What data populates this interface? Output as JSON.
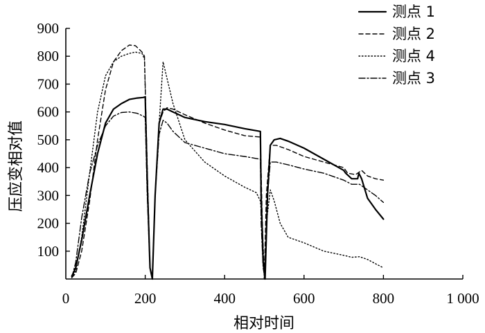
{
  "chart_data": {
    "type": "line",
    "xlabel": "相对时间",
    "ylabel": "压应变相对值",
    "xlim": [
      0,
      1000
    ],
    "ylim": [
      0,
      900
    ],
    "xticks": [
      0,
      200,
      400,
      600,
      800,
      1000
    ],
    "xtick_labels": [
      "0",
      "200",
      "400",
      "600",
      "800",
      "1 000"
    ],
    "yticks": [
      100,
      200,
      300,
      400,
      500,
      600,
      700,
      800,
      900
    ],
    "ytick_labels": [
      "100",
      "200",
      "300",
      "400",
      "500",
      "600",
      "700",
      "800",
      "900"
    ],
    "grid": false,
    "legend_position": "top-right",
    "series": [
      {
        "name": "测点 1",
        "style": "solid",
        "x": [
          15,
          25,
          40,
          60,
          80,
          100,
          120,
          140,
          160,
          180,
          195,
          200,
          205,
          212,
          218,
          225,
          235,
          245,
          255,
          270,
          300,
          350,
          400,
          450,
          490,
          492,
          497,
          502,
          508,
          515,
          525,
          540,
          560,
          600,
          650,
          700,
          705,
          720,
          735,
          738,
          745,
          760,
          780,
          800
        ],
        "y": [
          10,
          40,
          140,
          300,
          450,
          560,
          610,
          630,
          645,
          650,
          652,
          654,
          350,
          40,
          0,
          300,
          560,
          610,
          610,
          600,
          580,
          565,
          555,
          540,
          530,
          300,
          60,
          0,
          300,
          480,
          500,
          505,
          495,
          470,
          430,
          390,
          380,
          360,
          360,
          380,
          360,
          290,
          250,
          215
        ]
      },
      {
        "name": "测点 2",
        "style": "dashed",
        "x": [
          15,
          25,
          40,
          60,
          80,
          100,
          120,
          140,
          160,
          175,
          185,
          192,
          198,
          205,
          212,
          218,
          225,
          235,
          245,
          255,
          270,
          300,
          350,
          400,
          450,
          490,
          495,
          500,
          505,
          515,
          530,
          560,
          600,
          650,
          700,
          710,
          730,
          745,
          760,
          780,
          800
        ],
        "y": [
          5,
          20,
          100,
          280,
          500,
          680,
          780,
          820,
          840,
          838,
          825,
          815,
          800,
          400,
          40,
          0,
          300,
          560,
          600,
          615,
          610,
          590,
          560,
          535,
          515,
          510,
          200,
          0,
          300,
          480,
          480,
          465,
          440,
          420,
          400,
          380,
          375,
          390,
          370,
          360,
          355
        ]
      },
      {
        "name": "测点 4",
        "style": "dotted",
        "x": [
          15,
          25,
          40,
          60,
          80,
          100,
          120,
          140,
          160,
          175,
          185,
          192,
          198,
          205,
          212,
          218,
          225,
          235,
          245,
          255,
          270,
          300,
          350,
          400,
          450,
          480,
          490,
          495,
          500,
          505,
          515,
          525,
          540,
          560,
          600,
          650,
          700,
          720,
          740,
          760,
          780,
          800
        ],
        "y": [
          5,
          30,
          150,
          380,
          600,
          730,
          780,
          800,
          810,
          815,
          812,
          810,
          790,
          400,
          40,
          0,
          300,
          560,
          780,
          720,
          630,
          500,
          420,
          370,
          330,
          310,
          280,
          200,
          0,
          200,
          320,
          280,
          200,
          150,
          130,
          100,
          85,
          78,
          80,
          70,
          55,
          40
        ]
      },
      {
        "name": "测点 3",
        "style": "dashdot",
        "x": [
          15,
          25,
          40,
          60,
          80,
          100,
          120,
          140,
          160,
          180,
          195,
          200,
          205,
          212,
          218,
          225,
          235,
          245,
          255,
          270,
          300,
          350,
          400,
          450,
          490,
          492,
          497,
          502,
          508,
          515,
          530,
          560,
          600,
          650,
          700,
          720,
          740,
          760,
          780,
          800
        ],
        "y": [
          5,
          60,
          220,
          380,
          480,
          550,
          585,
          598,
          600,
          595,
          585,
          580,
          300,
          40,
          0,
          300,
          520,
          570,
          560,
          530,
          490,
          470,
          450,
          440,
          430,
          200,
          40,
          0,
          300,
          420,
          420,
          410,
          395,
          380,
          355,
          340,
          340,
          320,
          300,
          275
        ]
      }
    ]
  }
}
